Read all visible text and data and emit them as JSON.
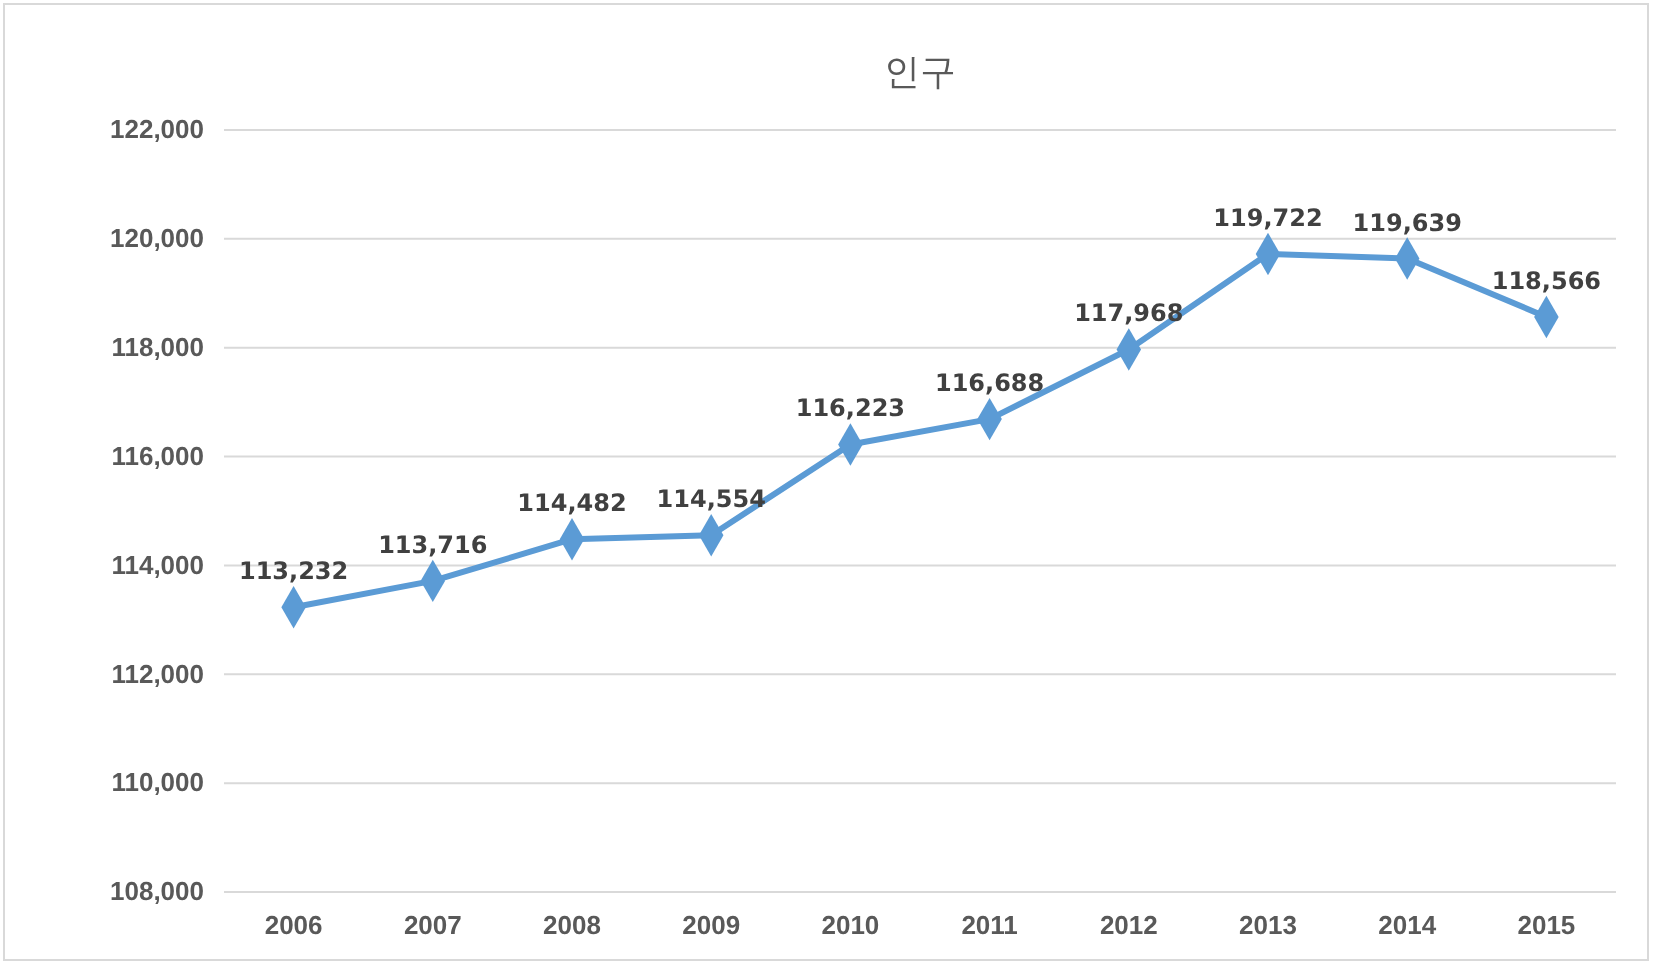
{
  "chart_data": {
    "type": "line",
    "title": "인구",
    "categories": [
      "2006",
      "2007",
      "2008",
      "2009",
      "2010",
      "2011",
      "2012",
      "2013",
      "2014",
      "2015"
    ],
    "series": [
      {
        "color": "#5b9bd5",
        "values": [
          113232,
          113716,
          114482,
          114554,
          116223,
          116688,
          117968,
          119722,
          119639,
          118566
        ],
        "value_labels": [
          "113,232",
          "113,716",
          "114,482",
          "114,554",
          "116,223",
          "116,688",
          "117,968",
          "119,722",
          "119,639",
          "118,566"
        ]
      }
    ],
    "ylim": [
      108000,
      122000
    ],
    "yticks": [
      {
        "value": 108000,
        "label": "108,000"
      },
      {
        "value": 110000,
        "label": "110,000"
      },
      {
        "value": 112000,
        "label": "112,000"
      },
      {
        "value": 114000,
        "label": "114,000"
      },
      {
        "value": 116000,
        "label": "116,000"
      },
      {
        "value": 118000,
        "label": "118,000"
      },
      {
        "value": 120000,
        "label": "120,000"
      },
      {
        "value": 122000,
        "label": "122,000"
      }
    ],
    "grid": "y",
    "marker": "diamond",
    "line_style": "solid"
  }
}
